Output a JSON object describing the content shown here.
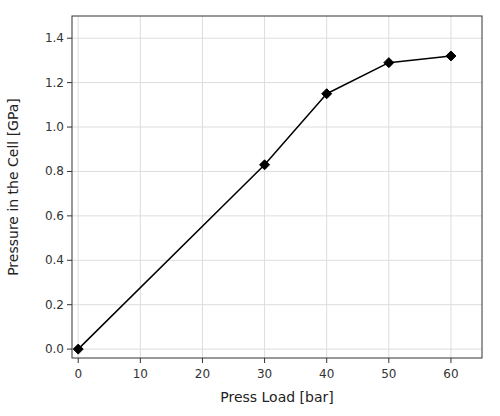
{
  "chart_data": {
    "type": "line",
    "x": [
      0,
      30,
      40,
      50,
      60
    ],
    "values": [
      0.0,
      0.83,
      1.15,
      1.29,
      1.32
    ],
    "xlabel": "Press Load [bar]",
    "ylabel": "Pressure in the Cell [GPa]",
    "xlim": [
      -1,
      65
    ],
    "ylim": [
      -0.04,
      1.5
    ],
    "xticks": [
      0,
      10,
      20,
      30,
      40,
      50,
      60
    ],
    "yticks": [
      {
        "value": 0.0,
        "label": "0.0"
      },
      0.2,
      0.4,
      0.6,
      0.8,
      {
        "value": 1.0,
        "label": "1.0"
      },
      1.2,
      1.4
    ],
    "color": "#000000",
    "marker": "diamond",
    "grid": true
  }
}
